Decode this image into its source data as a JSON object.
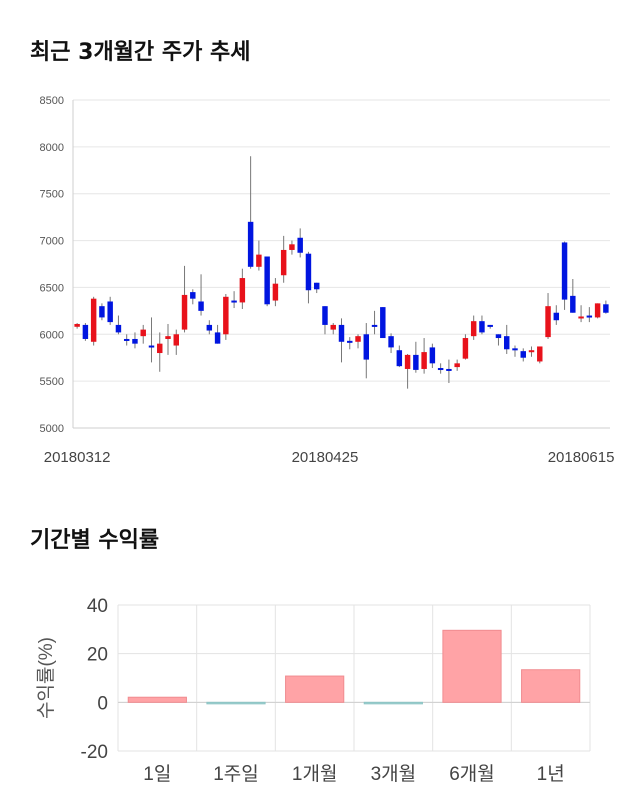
{
  "titles": {
    "candle": "최근 3개월간 주가 추세",
    "returns": "기간별 수익률"
  },
  "colors": {
    "up": "#e8121b",
    "down": "#0015e0",
    "bar": "#ffa3a6",
    "bar_neg": "#a8d5d5"
  },
  "chart_data": [
    {
      "type": "candlestick",
      "ylim": [
        5000,
        8500
      ],
      "yticks": [
        5000,
        5500,
        6000,
        6500,
        7000,
        7500,
        8000,
        8500
      ],
      "xtick_labels": [
        {
          "index": 0,
          "label": "20180312"
        },
        {
          "index": 30,
          "label": "20180425"
        },
        {
          "index": 61,
          "label": "20180615"
        }
      ],
      "grid": true,
      "ohlc": [
        [
          6080,
          6120,
          6060,
          6110
        ],
        [
          6100,
          6120,
          5930,
          5950
        ],
        [
          5920,
          6400,
          5880,
          6380
        ],
        [
          6300,
          6330,
          6150,
          6180
        ],
        [
          6350,
          6400,
          6100,
          6130
        ],
        [
          6100,
          6200,
          6000,
          6020
        ],
        [
          5950,
          6000,
          5880,
          5930
        ],
        [
          5950,
          6020,
          5850,
          5900
        ],
        [
          5980,
          6100,
          5900,
          6050
        ],
        [
          5880,
          6180,
          5700,
          5860
        ],
        [
          5800,
          6020,
          5600,
          5900
        ],
        [
          5950,
          6110,
          5780,
          5980
        ],
        [
          5880,
          6050,
          5780,
          6000
        ],
        [
          6050,
          6730,
          6020,
          6420
        ],
        [
          6450,
          6480,
          6320,
          6380
        ],
        [
          6350,
          6640,
          6200,
          6250
        ],
        [
          6100,
          6150,
          6000,
          6040
        ],
        [
          6020,
          6100,
          5900,
          5900
        ],
        [
          6000,
          6430,
          5940,
          6400
        ],
        [
          6360,
          6460,
          6280,
          6340
        ],
        [
          6340,
          6700,
          6270,
          6600
        ],
        [
          7200,
          7900,
          6700,
          6720
        ],
        [
          6720,
          7000,
          6680,
          6850
        ],
        [
          6830,
          6830,
          6300,
          6320
        ],
        [
          6360,
          6600,
          6300,
          6540
        ],
        [
          6630,
          7050,
          6550,
          6900
        ],
        [
          6900,
          7000,
          6850,
          6960
        ],
        [
          7030,
          7130,
          6820,
          6870
        ],
        [
          6860,
          6880,
          6330,
          6470
        ],
        [
          6550,
          6550,
          6440,
          6480
        ],
        [
          6300,
          6300,
          6000,
          6100
        ],
        [
          6050,
          6120,
          6000,
          6100
        ],
        [
          6100,
          6170,
          5700,
          5920
        ],
        [
          5930,
          5970,
          5840,
          5910
        ],
        [
          5920,
          6000,
          5850,
          5980
        ],
        [
          6000,
          6120,
          5530,
          5730
        ],
        [
          6100,
          6250,
          6000,
          6080
        ],
        [
          6290,
          6290,
          5990,
          5960
        ],
        [
          5980,
          6010,
          5800,
          5860
        ],
        [
          5830,
          5880,
          5650,
          5660
        ],
        [
          5630,
          5790,
          5420,
          5780
        ],
        [
          5780,
          5920,
          5590,
          5620
        ],
        [
          5630,
          5960,
          5580,
          5810
        ],
        [
          5860,
          5900,
          5640,
          5690
        ],
        [
          5640,
          5690,
          5580,
          5620
        ],
        [
          5630,
          5730,
          5480,
          5610
        ],
        [
          5650,
          5730,
          5610,
          5690
        ],
        [
          5740,
          6000,
          5730,
          5960
        ],
        [
          5980,
          6200,
          5940,
          6140
        ],
        [
          6140,
          6200,
          6000,
          6020
        ],
        [
          6100,
          6100,
          6060,
          6090
        ],
        [
          6000,
          6000,
          5880,
          5960
        ],
        [
          5980,
          6100,
          5790,
          5840
        ],
        [
          5850,
          5880,
          5760,
          5830
        ],
        [
          5820,
          5850,
          5710,
          5750
        ],
        [
          5810,
          5870,
          5760,
          5830
        ],
        [
          5710,
          5860,
          5690,
          5870
        ],
        [
          5970,
          6440,
          5950,
          6300
        ],
        [
          6230,
          6310,
          6100,
          6150
        ],
        [
          6980,
          6990,
          6260,
          6370
        ],
        [
          6410,
          6590,
          6230,
          6230
        ],
        [
          6180,
          6310,
          6130,
          6190
        ],
        [
          6200,
          6290,
          6130,
          6180
        ],
        [
          6180,
          6330,
          6170,
          6330
        ],
        [
          6320,
          6360,
          6220,
          6230
        ]
      ]
    },
    {
      "type": "bar",
      "categories": [
        "1일",
        "1주일",
        "1개월",
        "3개월",
        "6개월",
        "1년"
      ],
      "values": [
        2.1,
        -0.4,
        10.8,
        -0.3,
        29.6,
        13.4
      ],
      "ylabel": "수익률(%)",
      "ylim": [
        -20,
        40
      ],
      "yticks": [
        -20,
        0,
        20,
        40
      ],
      "grid": true
    }
  ]
}
